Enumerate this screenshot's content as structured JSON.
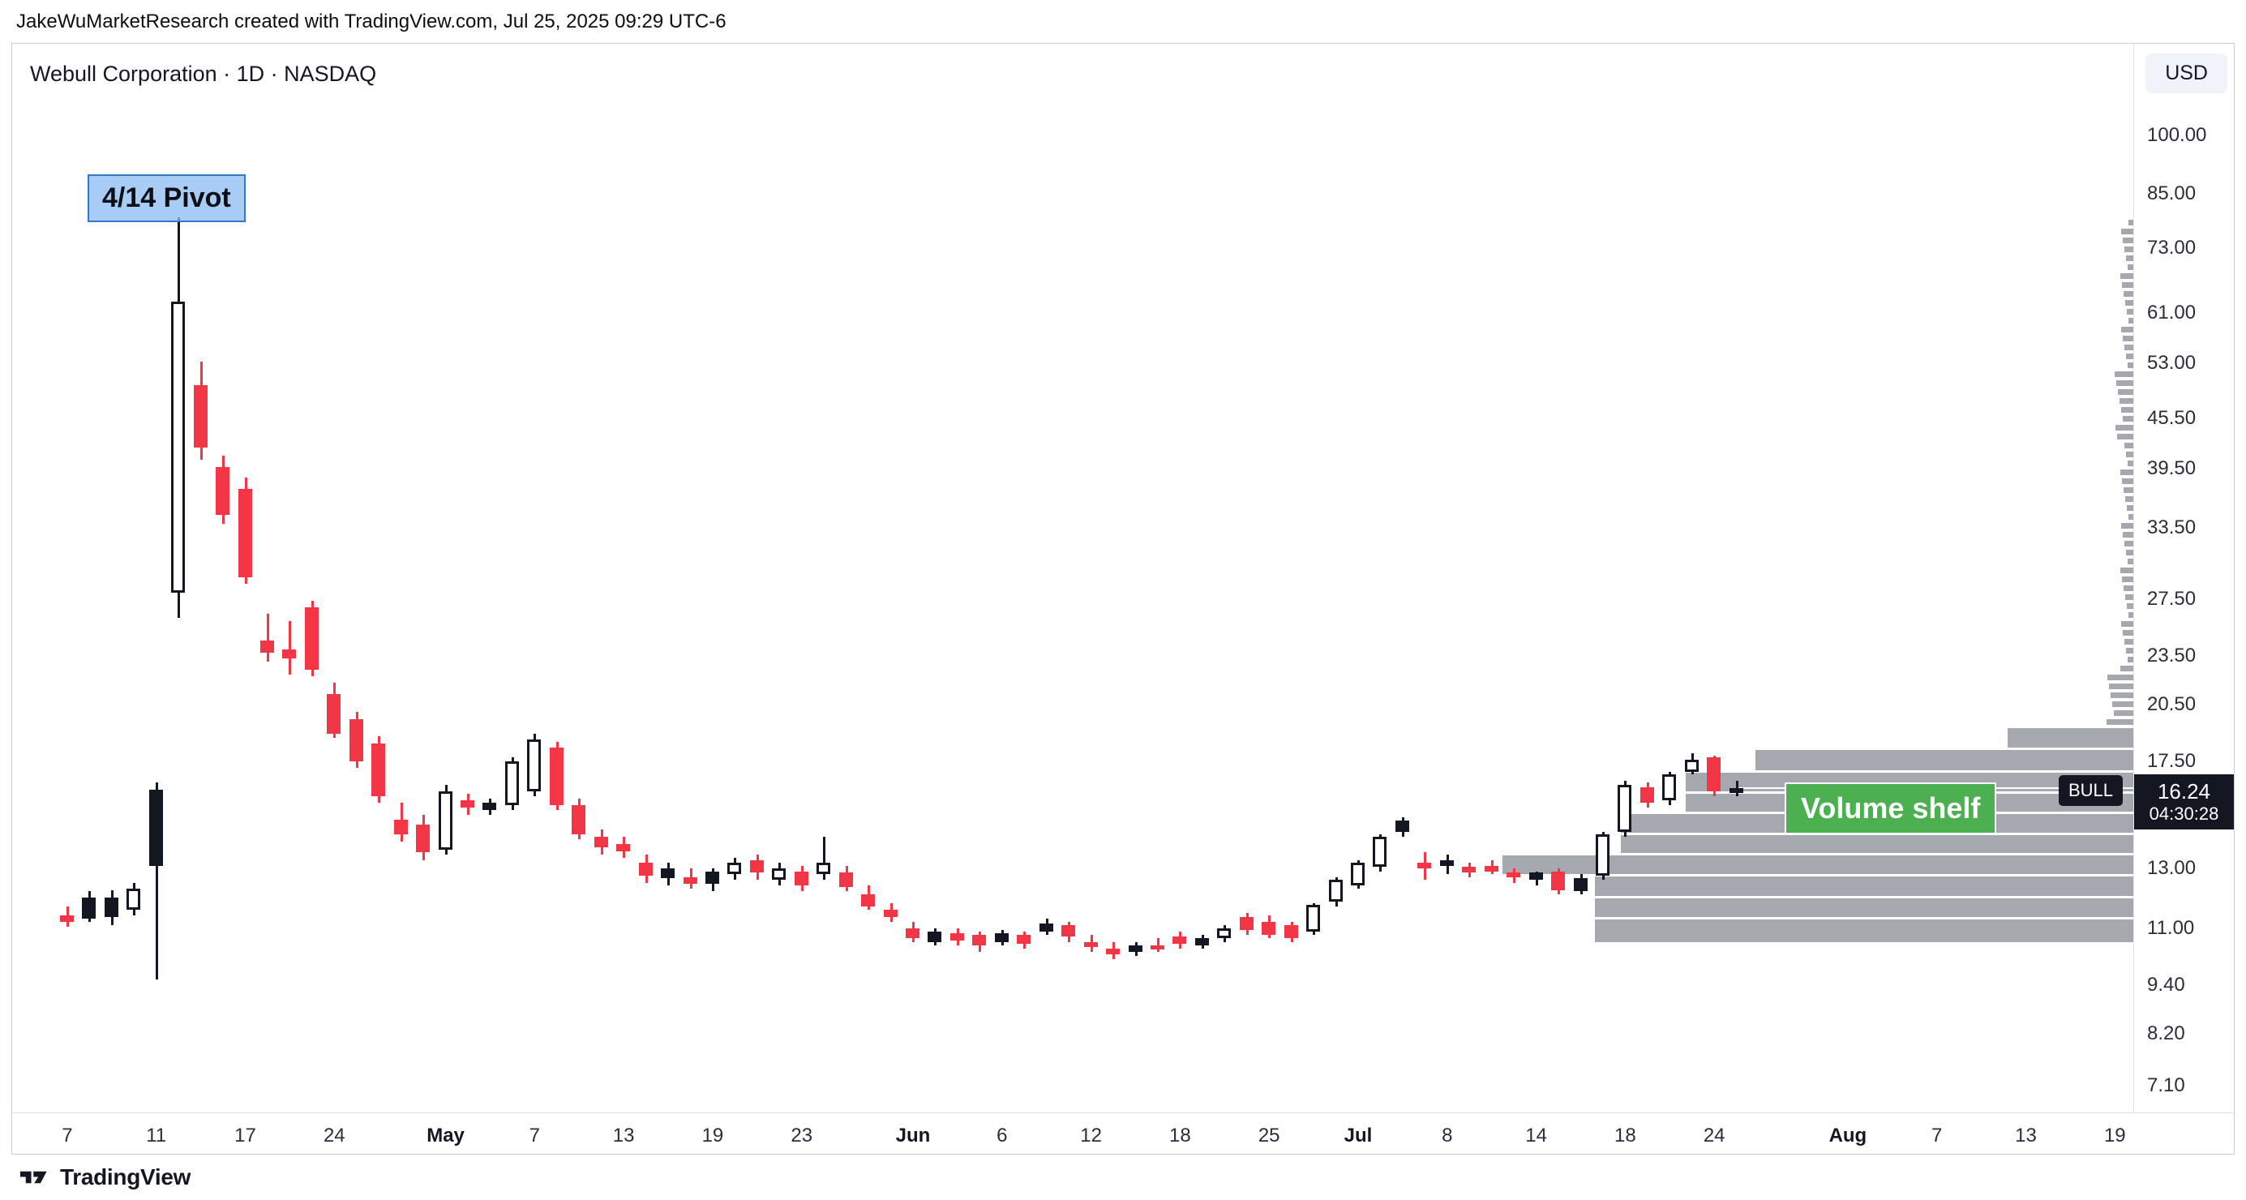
{
  "attribution": {
    "text": "JakeWuMarketResearch created with TradingView.com, Jul 25, 2025 09:29 UTC-6"
  },
  "header": {
    "symbol_title": "Webull Corporation · 1D · NASDAQ",
    "currency_button": "USD"
  },
  "annotations": {
    "pivot_label": "4/14 Pivot",
    "volume_shelf_label": "Volume shelf",
    "ticker_badge": "BULL",
    "last_price_text": "16.24",
    "countdown": "04:30:28"
  },
  "footer": {
    "brand": "TradingView"
  },
  "colors": {
    "up": "#FFFFFF",
    "up_border": "#131722",
    "down": "#F23645",
    "neutral": "#131722",
    "volume_profile": "#A6A8B0",
    "shelf_label_bg": "#4CAF50",
    "pivot_bg": "#90BEF3",
    "pivot_border": "#3179C9",
    "price_label_bg": "#131722"
  },
  "chart_data": {
    "type": "candlestick",
    "title": "Webull Corporation · 1D · NASDAQ",
    "symbol": "BULL",
    "interval": "1D",
    "exchange": "NASDAQ",
    "currency": "USD",
    "y_scale": "log",
    "y_range": [
      7.1,
      100
    ],
    "grid": false,
    "last_price": 16.24,
    "price_axis_labels": [
      "100.00",
      "85.00",
      "73.00",
      "61.00",
      "53.00",
      "45.50",
      "39.50",
      "33.50",
      "27.50",
      "23.50",
      "20.50",
      "17.50",
      "13.00",
      "11.00",
      "9.40",
      "8.20",
      "7.10"
    ],
    "time_axis_ticks": [
      {
        "label": "7",
        "i": 0
      },
      {
        "label": "11",
        "i": 4
      },
      {
        "label": "17",
        "i": 8
      },
      {
        "label": "24",
        "i": 12
      },
      {
        "label": "May",
        "i": 17,
        "month": true
      },
      {
        "label": "7",
        "i": 21
      },
      {
        "label": "13",
        "i": 25
      },
      {
        "label": "19",
        "i": 29
      },
      {
        "label": "23",
        "i": 33
      },
      {
        "label": "Jun",
        "i": 38,
        "month": true
      },
      {
        "label": "6",
        "i": 42
      },
      {
        "label": "12",
        "i": 46
      },
      {
        "label": "18",
        "i": 50
      },
      {
        "label": "25",
        "i": 54
      },
      {
        "label": "Jul",
        "i": 58,
        "month": true
      },
      {
        "label": "8",
        "i": 62
      },
      {
        "label": "14",
        "i": 66
      },
      {
        "label": "18",
        "i": 70
      },
      {
        "label": "24",
        "i": 74
      },
      {
        "label": "Aug",
        "i": 80,
        "month": true
      },
      {
        "label": "7",
        "i": 84
      },
      {
        "label": "13",
        "i": 88
      },
      {
        "label": "19",
        "i": 92
      }
    ],
    "candles": [
      {
        "d": "Apr 7",
        "o": 11.4,
        "h": 11.7,
        "l": 11.05,
        "c": 11.2,
        "k": "red"
      },
      {
        "d": "Apr 8",
        "o": 11.3,
        "h": 12.2,
        "l": 11.2,
        "c": 12.0,
        "k": "black"
      },
      {
        "d": "Apr 9",
        "o": 12.0,
        "h": 12.25,
        "l": 11.1,
        "c": 11.35,
        "k": "black"
      },
      {
        "d": "Apr 10",
        "o": 11.6,
        "h": 12.5,
        "l": 11.4,
        "c": 12.3,
        "k": "white"
      },
      {
        "d": "Apr 11",
        "o": 13.1,
        "h": 16.5,
        "l": 9.55,
        "c": 16.2,
        "k": "black"
      },
      {
        "d": "Apr 14",
        "o": 28.0,
        "h": 79.56,
        "l": 26.1,
        "c": 62.9,
        "k": "white"
      },
      {
        "d": "Apr 15",
        "o": 49.9,
        "h": 53.2,
        "l": 40.5,
        "c": 41.9,
        "k": "red"
      },
      {
        "d": "Apr 16",
        "o": 39.7,
        "h": 41.0,
        "l": 33.9,
        "c": 34.8,
        "k": "red"
      },
      {
        "d": "Apr 17",
        "o": 37.4,
        "h": 38.6,
        "l": 28.7,
        "c": 29.2,
        "k": "red"
      },
      {
        "d": "Apr 21",
        "o": 24.5,
        "h": 26.4,
        "l": 23.1,
        "c": 23.7,
        "k": "red"
      },
      {
        "d": "Apr 22",
        "o": 23.9,
        "h": 25.9,
        "l": 22.3,
        "c": 23.3,
        "k": "red"
      },
      {
        "d": "Apr 23",
        "o": 26.9,
        "h": 27.4,
        "l": 22.2,
        "c": 22.6,
        "k": "red"
      },
      {
        "d": "Apr 24",
        "o": 21.1,
        "h": 21.8,
        "l": 18.7,
        "c": 18.9,
        "k": "red"
      },
      {
        "d": "Apr 25",
        "o": 19.7,
        "h": 20.1,
        "l": 17.2,
        "c": 17.5,
        "k": "red"
      },
      {
        "d": "Apr 28",
        "o": 18.4,
        "h": 18.8,
        "l": 15.6,
        "c": 15.9,
        "k": "red"
      },
      {
        "d": "Apr 29",
        "o": 14.9,
        "h": 15.6,
        "l": 14.0,
        "c": 14.3,
        "k": "red"
      },
      {
        "d": "Apr 30",
        "o": 14.7,
        "h": 15.1,
        "l": 13.3,
        "c": 13.6,
        "k": "red"
      },
      {
        "d": "May 1",
        "o": 13.7,
        "h": 16.4,
        "l": 13.5,
        "c": 16.1,
        "k": "white"
      },
      {
        "d": "May 2",
        "o": 15.7,
        "h": 16.0,
        "l": 15.1,
        "c": 15.4,
        "k": "red"
      },
      {
        "d": "May 5",
        "o": 15.3,
        "h": 15.8,
        "l": 15.1,
        "c": 15.6,
        "k": "black"
      },
      {
        "d": "May 6",
        "o": 15.5,
        "h": 17.7,
        "l": 15.3,
        "c": 17.5,
        "k": "white"
      },
      {
        "d": "May 7",
        "o": 16.1,
        "h": 18.9,
        "l": 15.9,
        "c": 18.6,
        "k": "white"
      },
      {
        "d": "May 8",
        "o": 18.2,
        "h": 18.5,
        "l": 15.3,
        "c": 15.5,
        "k": "red"
      },
      {
        "d": "May 9",
        "o": 15.5,
        "h": 15.8,
        "l": 14.1,
        "c": 14.3,
        "k": "red"
      },
      {
        "d": "May 12",
        "o": 14.2,
        "h": 14.5,
        "l": 13.5,
        "c": 13.8,
        "k": "red"
      },
      {
        "d": "May 13",
        "o": 13.9,
        "h": 14.2,
        "l": 13.4,
        "c": 13.65,
        "k": "red"
      },
      {
        "d": "May 14",
        "o": 13.2,
        "h": 13.5,
        "l": 12.5,
        "c": 12.75,
        "k": "red"
      },
      {
        "d": "May 15",
        "o": 12.65,
        "h": 13.2,
        "l": 12.4,
        "c": 13.0,
        "k": "black"
      },
      {
        "d": "May 16",
        "o": 12.7,
        "h": 13.0,
        "l": 12.3,
        "c": 12.45,
        "k": "red"
      },
      {
        "d": "May 19",
        "o": 12.45,
        "h": 13.0,
        "l": 12.2,
        "c": 12.9,
        "k": "black"
      },
      {
        "d": "May 20",
        "o": 12.8,
        "h": 13.4,
        "l": 12.6,
        "c": 13.2,
        "k": "white"
      },
      {
        "d": "May 21",
        "o": 13.3,
        "h": 13.5,
        "l": 12.6,
        "c": 12.85,
        "k": "red"
      },
      {
        "d": "May 22",
        "o": 12.6,
        "h": 13.2,
        "l": 12.4,
        "c": 13.0,
        "k": "white"
      },
      {
        "d": "May 23",
        "o": 12.9,
        "h": 13.1,
        "l": 12.2,
        "c": 12.4,
        "k": "red"
      },
      {
        "d": "May 27",
        "o": 12.8,
        "h": 14.2,
        "l": 12.6,
        "c": 13.2,
        "k": "white"
      },
      {
        "d": "May 28",
        "o": 12.85,
        "h": 13.1,
        "l": 12.2,
        "c": 12.35,
        "k": "red"
      },
      {
        "d": "May 29",
        "o": 12.1,
        "h": 12.4,
        "l": 11.6,
        "c": 11.7,
        "k": "red"
      },
      {
        "d": "May 30",
        "o": 11.6,
        "h": 11.8,
        "l": 11.2,
        "c": 11.35,
        "k": "red"
      },
      {
        "d": "Jun 2",
        "o": 11.0,
        "h": 11.2,
        "l": 10.6,
        "c": 10.7,
        "k": "red"
      },
      {
        "d": "Jun 3",
        "o": 10.6,
        "h": 11.0,
        "l": 10.5,
        "c": 10.9,
        "k": "black"
      },
      {
        "d": "Jun 4",
        "o": 10.85,
        "h": 11.0,
        "l": 10.5,
        "c": 10.65,
        "k": "red"
      },
      {
        "d": "Jun 5",
        "o": 10.8,
        "h": 10.9,
        "l": 10.3,
        "c": 10.5,
        "k": "red"
      },
      {
        "d": "Jun 6",
        "o": 10.6,
        "h": 10.95,
        "l": 10.5,
        "c": 10.85,
        "k": "black"
      },
      {
        "d": "Jun 9",
        "o": 10.8,
        "h": 10.9,
        "l": 10.4,
        "c": 10.55,
        "k": "red"
      },
      {
        "d": "Jun 10",
        "o": 10.9,
        "h": 11.3,
        "l": 10.8,
        "c": 11.15,
        "k": "black"
      },
      {
        "d": "Jun 11",
        "o": 11.1,
        "h": 11.2,
        "l": 10.6,
        "c": 10.75,
        "k": "red"
      },
      {
        "d": "Jun 12",
        "o": 10.6,
        "h": 10.8,
        "l": 10.3,
        "c": 10.45,
        "k": "red"
      },
      {
        "d": "Jun 13",
        "o": 10.4,
        "h": 10.6,
        "l": 10.1,
        "c": 10.25,
        "k": "red"
      },
      {
        "d": "Jun 16",
        "o": 10.3,
        "h": 10.6,
        "l": 10.2,
        "c": 10.5,
        "k": "black"
      },
      {
        "d": "Jun 17",
        "o": 10.5,
        "h": 10.7,
        "l": 10.3,
        "c": 10.4,
        "k": "red"
      },
      {
        "d": "Jun 18",
        "o": 10.75,
        "h": 10.9,
        "l": 10.4,
        "c": 10.55,
        "k": "red"
      },
      {
        "d": "Jun 20",
        "o": 10.5,
        "h": 10.8,
        "l": 10.4,
        "c": 10.7,
        "k": "black"
      },
      {
        "d": "Jun 23",
        "o": 10.7,
        "h": 11.1,
        "l": 10.6,
        "c": 11.0,
        "k": "white"
      },
      {
        "d": "Jun 24",
        "o": 11.35,
        "h": 11.5,
        "l": 10.8,
        "c": 10.95,
        "k": "red"
      },
      {
        "d": "Jun 25",
        "o": 11.2,
        "h": 11.4,
        "l": 10.7,
        "c": 10.8,
        "k": "red"
      },
      {
        "d": "Jun 26",
        "o": 11.1,
        "h": 11.2,
        "l": 10.6,
        "c": 10.7,
        "k": "red"
      },
      {
        "d": "Jun 27",
        "o": 10.9,
        "h": 11.8,
        "l": 10.8,
        "c": 11.75,
        "k": "white"
      },
      {
        "d": "Jun 30",
        "o": 11.85,
        "h": 12.7,
        "l": 11.7,
        "c": 12.6,
        "k": "white"
      },
      {
        "d": "Jul 1",
        "o": 12.4,
        "h": 13.3,
        "l": 12.3,
        "c": 13.2,
        "k": "white"
      },
      {
        "d": "Jul 2",
        "o": 13.05,
        "h": 14.3,
        "l": 12.9,
        "c": 14.2,
        "k": "white"
      },
      {
        "d": "Jul 3",
        "o": 14.4,
        "h": 15.0,
        "l": 14.2,
        "c": 14.85,
        "k": "black"
      },
      {
        "d": "Jul 7",
        "o": 13.2,
        "h": 13.6,
        "l": 12.6,
        "c": 13.0,
        "k": "red"
      },
      {
        "d": "Jul 8",
        "o": 13.1,
        "h": 13.5,
        "l": 12.8,
        "c": 13.3,
        "k": "black"
      },
      {
        "d": "Jul 9",
        "o": 13.05,
        "h": 13.2,
        "l": 12.7,
        "c": 12.85,
        "k": "red"
      },
      {
        "d": "Jul 10",
        "o": 13.1,
        "h": 13.3,
        "l": 12.8,
        "c": 12.9,
        "k": "red"
      },
      {
        "d": "Jul 11",
        "o": 12.85,
        "h": 13.0,
        "l": 12.5,
        "c": 12.7,
        "k": "red"
      },
      {
        "d": "Jul 14",
        "o": 12.6,
        "h": 12.9,
        "l": 12.4,
        "c": 12.85,
        "k": "black"
      },
      {
        "d": "Jul 15",
        "o": 12.9,
        "h": 13.0,
        "l": 12.1,
        "c": 12.25,
        "k": "red"
      },
      {
        "d": "Jul 16",
        "o": 12.2,
        "h": 12.8,
        "l": 12.1,
        "c": 12.65,
        "k": "black"
      },
      {
        "d": "Jul 17",
        "o": 12.75,
        "h": 14.4,
        "l": 12.6,
        "c": 14.3,
        "k": "white"
      },
      {
        "d": "Jul 18",
        "o": 14.4,
        "h": 16.6,
        "l": 14.2,
        "c": 16.4,
        "k": "white"
      },
      {
        "d": "Jul 21",
        "o": 16.3,
        "h": 16.5,
        "l": 15.4,
        "c": 15.6,
        "k": "red"
      },
      {
        "d": "Jul 22",
        "o": 15.7,
        "h": 17.0,
        "l": 15.5,
        "c": 16.9,
        "k": "white"
      },
      {
        "d": "Jul 23",
        "o": 17.0,
        "h": 17.9,
        "l": 16.9,
        "c": 17.6,
        "k": "white"
      },
      {
        "d": "Jul 24",
        "o": 17.7,
        "h": 17.8,
        "l": 15.9,
        "c": 16.1,
        "k": "red"
      },
      {
        "d": "Jul 25",
        "o": 16.1,
        "h": 16.6,
        "l": 15.9,
        "c": 16.24,
        "k": "white"
      }
    ],
    "volume_profile": {
      "anchored": "right-edge",
      "rows": [
        [
          19.25,
          18.1,
          155
        ],
        [
          18.1,
          17.0,
          466
        ],
        [
          17.0,
          16.05,
          552
        ],
        [
          16.05,
          15.15,
          552
        ],
        [
          15.15,
          14.3,
          632
        ],
        [
          14.3,
          13.5,
          632
        ],
        [
          13.5,
          12.75,
          778
        ],
        [
          12.75,
          12.0,
          664
        ],
        [
          12.0,
          11.3,
          664
        ],
        [
          11.3,
          10.55,
          664
        ]
      ],
      "micro": {
        "top_price": 79.0,
        "bottom_price": 19.6,
        "description": "thin column of small volume bars along right edge covering the April spike price range"
      }
    }
  }
}
